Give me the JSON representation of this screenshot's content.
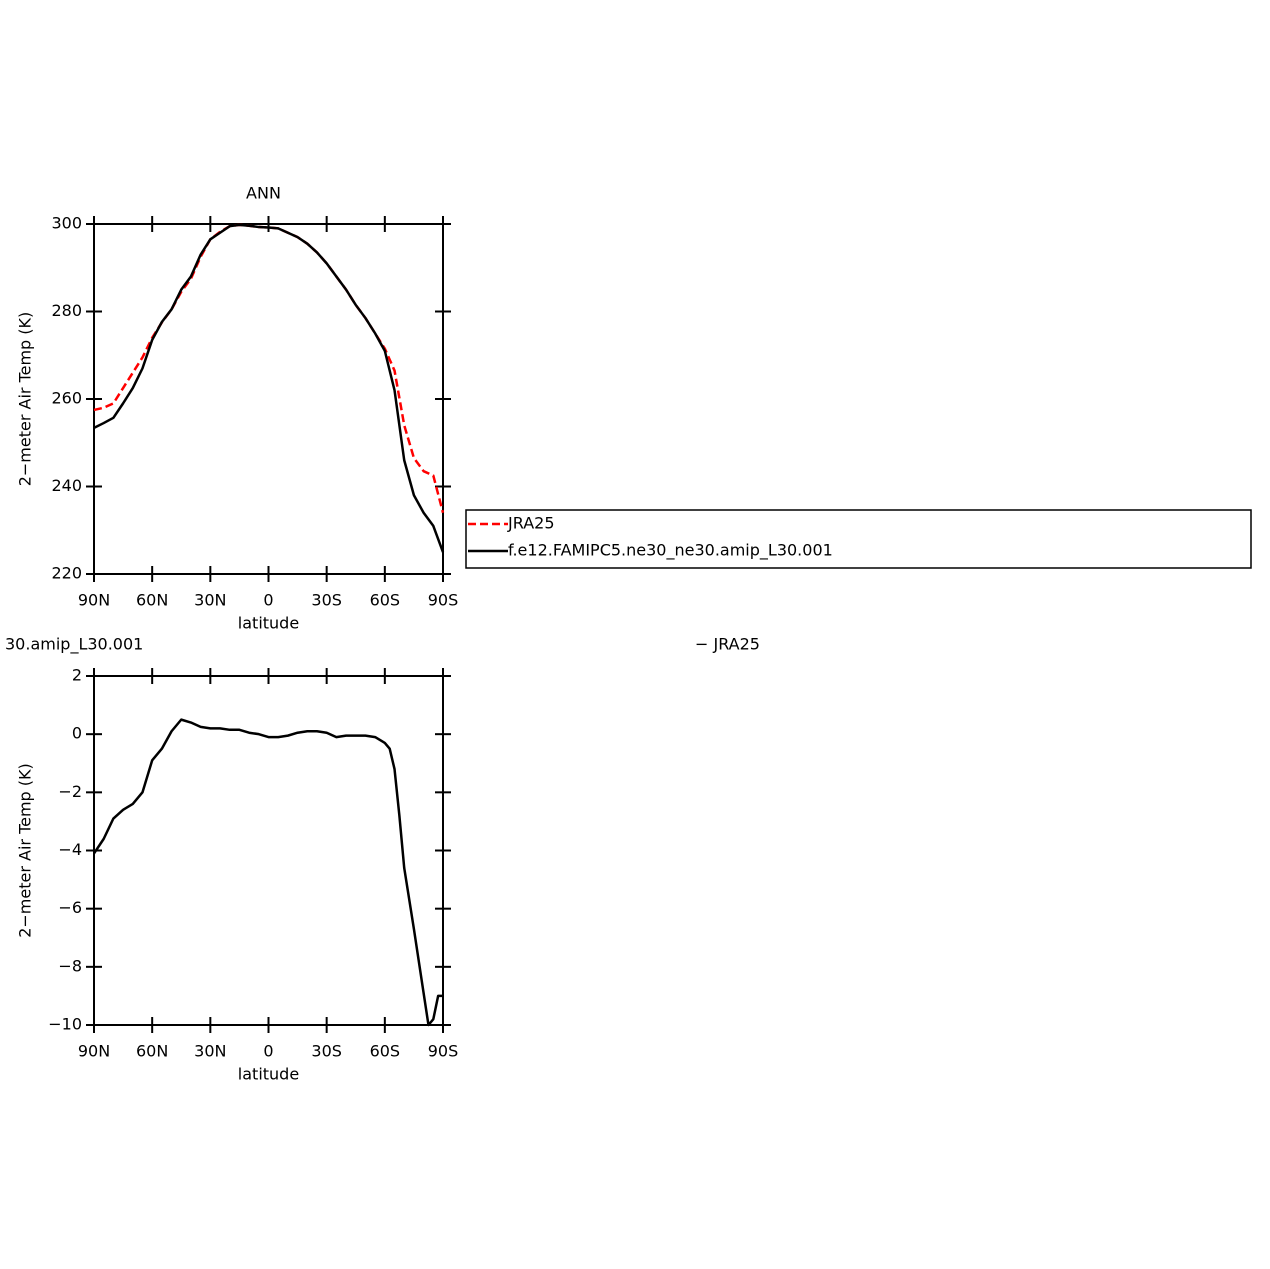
{
  "chart_data": [
    {
      "type": "line",
      "title": "ANN",
      "xlabel": "latitude",
      "ylabel": "2−meter Air Temp (K)",
      "x": [
        90,
        85,
        80,
        75,
        70,
        65,
        60,
        55,
        50,
        45,
        40,
        35,
        30,
        25,
        20,
        15,
        10,
        5,
        0,
        -5,
        -10,
        -15,
        -20,
        -25,
        -30,
        -35,
        -40,
        -45,
        -50,
        -55,
        -60,
        -65,
        -70,
        -75,
        -80,
        -85,
        -90
      ],
      "series": [
        {
          "name": "JRA25",
          "color": "#ff0000",
          "line_style": "dashed",
          "values": [
            257.5,
            258,
            259,
            262.5,
            266,
            269.5,
            274,
            277.5,
            280.5,
            284.5,
            287.5,
            292.5,
            296.5,
            298.2,
            299.5,
            299.8,
            299.6,
            299.3,
            299.2,
            299,
            298,
            297,
            295.5,
            293.5,
            291,
            288,
            285,
            281.5,
            278.5,
            275,
            271.5,
            266.5,
            254,
            246.5,
            243.5,
            242.5,
            234
          ]
        },
        {
          "name": "f.e12.FAMIPC5.ne30_ne30.amip_L30.001",
          "color": "#000000",
          "line_style": "solid",
          "values": [
            253.4,
            254.5,
            255.7,
            259,
            262.5,
            267,
            273.5,
            277.6,
            280.5,
            285,
            288,
            293,
            296.5,
            298,
            299.5,
            299.8,
            299.6,
            299.3,
            299.2,
            299,
            298,
            297,
            295.5,
            293.5,
            291,
            288,
            285,
            281.5,
            278.5,
            275,
            271,
            262,
            246,
            238,
            234,
            231,
            225
          ]
        }
      ],
      "xlim": [
        90,
        -90
      ],
      "xticks": [
        {
          "value": 90,
          "label": "90N"
        },
        {
          "value": 60,
          "label": "60N"
        },
        {
          "value": 30,
          "label": "30N"
        },
        0,
        {
          "value": -30,
          "label": "30S"
        },
        {
          "value": -60,
          "label": "60S"
        },
        {
          "value": -90,
          "label": "90S"
        }
      ],
      "ylim": [
        220,
        300
      ],
      "yticks": [
        220,
        240,
        260,
        280,
        300
      ],
      "legend": "right"
    },
    {
      "type": "line",
      "title_left": "30.amip_L30.001",
      "title_right": "−  JRA25",
      "xlabel": "latitude",
      "ylabel": "2−meter Air Temp (K)",
      "x": [
        90,
        85,
        80,
        75,
        70,
        65,
        60,
        55,
        50,
        45,
        40,
        35,
        30,
        25,
        20,
        15,
        10,
        5,
        0,
        -5,
        -10,
        -15,
        -20,
        -25,
        -30,
        -35,
        -40,
        -45,
        -50,
        -55,
        -60,
        -62.5,
        -65,
        -67.5,
        -70,
        -75,
        -80,
        -82.5,
        -85,
        -87.5,
        -90
      ],
      "series": [
        {
          "color": "#000000",
          "line_style": "solid",
          "values": [
            -4.1,
            -3.6,
            -2.9,
            -2.6,
            -2.4,
            -2.0,
            -0.9,
            -0.5,
            0.1,
            0.5,
            0.4,
            0.25,
            0.2,
            0.2,
            0.15,
            0.15,
            0.05,
            0.0,
            -0.1,
            -0.1,
            -0.05,
            0.05,
            0.1,
            0.1,
            0.05,
            -0.1,
            -0.05,
            -0.05,
            -0.05,
            -0.1,
            -0.3,
            -0.5,
            -1.2,
            -2.8,
            -4.6,
            -6.7,
            -8.9,
            -10,
            -9.8,
            -9.0,
            -9.0
          ]
        }
      ],
      "xlim": [
        90,
        -90
      ],
      "xticks": [
        {
          "value": 90,
          "label": "90N"
        },
        {
          "value": 60,
          "label": "60N"
        },
        {
          "value": 30,
          "label": "30N"
        },
        0,
        {
          "value": -30,
          "label": "30S"
        },
        {
          "value": -60,
          "label": "60S"
        },
        {
          "value": -90,
          "label": "90S"
        }
      ],
      "ylim": [
        -10,
        2
      ],
      "yticks": [
        {
          "value": -10,
          "label": "−10"
        },
        {
          "value": -8,
          "label": "−8"
        },
        {
          "value": -6,
          "label": "−6"
        },
        {
          "value": -4,
          "label": "−4"
        },
        {
          "value": -2,
          "label": "−2"
        },
        0,
        2
      ]
    }
  ]
}
